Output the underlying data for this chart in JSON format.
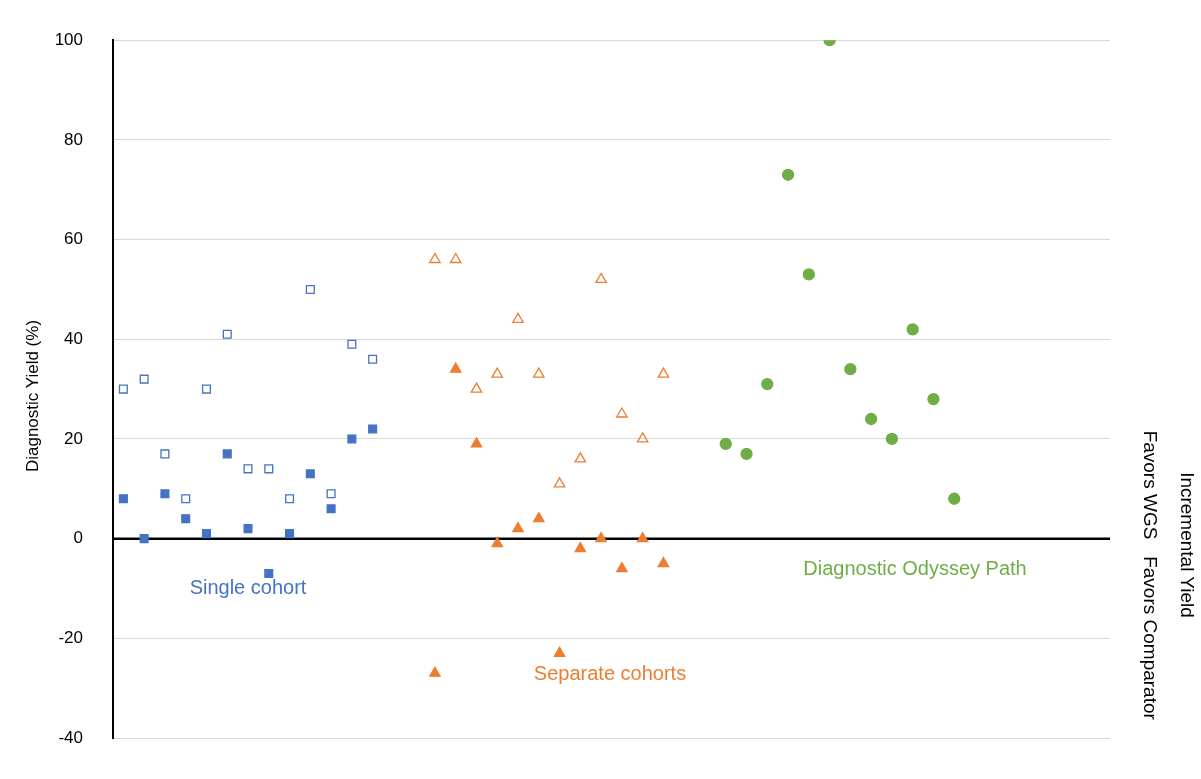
{
  "chart_data": {
    "type": "scatter",
    "ylabel": "Diagnostic Yield (%)",
    "y2label": "Incremental Yield",
    "categories": [
      null,
      null,
      null,
      null,
      null,
      null,
      null,
      null,
      null,
      null,
      null,
      null,
      null,
      null,
      null,
      null,
      null,
      null,
      null,
      null,
      null,
      null,
      null,
      null,
      null,
      null,
      null,
      null,
      null,
      null,
      null,
      null,
      null,
      null,
      null,
      null,
      null,
      null,
      null,
      null,
      null,
      null,
      null,
      null,
      null,
      null,
      null,
      null
    ],
    "series": [
      {
        "color": "#4472c4",
        "marker": "square",
        "values": [
          8,
          0,
          9,
          4,
          1,
          17,
          2,
          -7,
          1,
          13,
          6,
          20,
          22,
          null,
          null,
          null,
          null,
          null,
          null,
          null,
          null,
          null,
          null,
          null,
          null,
          null,
          null,
          null,
          null,
          null,
          null,
          null,
          null,
          null,
          null,
          null,
          null,
          null,
          null,
          null,
          null,
          null,
          null,
          null,
          null,
          null,
          null,
          null
        ]
      },
      {
        "color": "#4472c4",
        "marker": "square",
        "values": [
          30,
          32,
          17,
          8,
          30,
          41,
          14,
          14,
          8,
          50,
          9,
          39,
          36,
          null,
          null,
          null,
          null,
          null,
          null,
          null,
          null,
          null,
          null,
          null,
          null,
          null,
          null,
          null,
          null,
          null,
          null,
          null,
          null,
          null,
          null,
          null,
          null,
          null,
          null,
          null,
          null,
          null,
          null,
          null,
          null,
          null,
          null,
          null
        ]
      },
      {
        "color": "#ed7d31",
        "marker": "triangle",
        "values": [
          null,
          null,
          null,
          null,
          null,
          null,
          null,
          null,
          null,
          null,
          null,
          null,
          null,
          null,
          null,
          -27,
          34,
          19,
          -1,
          2,
          4,
          -23,
          -2,
          0,
          -6,
          0,
          -5,
          null,
          null,
          null,
          null,
          null,
          null,
          null,
          null,
          null,
          null,
          null,
          null,
          null,
          null,
          null,
          null,
          null,
          null,
          null,
          null,
          null
        ]
      },
      {
        "color": "#ed7d31",
        "marker": "triangle",
        "values": [
          null,
          null,
          null,
          null,
          null,
          null,
          null,
          null,
          null,
          null,
          null,
          null,
          null,
          null,
          null,
          56,
          56,
          30,
          33,
          44,
          33,
          11,
          16,
          52,
          25,
          20,
          33,
          null,
          null,
          null,
          null,
          null,
          null,
          null,
          null,
          null,
          null,
          null,
          null,
          null,
          null,
          null,
          null,
          null,
          null,
          null,
          null,
          null
        ]
      },
      {
        "color": "#70ad47",
        "marker": "circle",
        "values": [
          null,
          null,
          null,
          null,
          null,
          null,
          null,
          null,
          null,
          null,
          null,
          null,
          null,
          null,
          null,
          null,
          null,
          null,
          null,
          null,
          null,
          null,
          null,
          null,
          null,
          null,
          null,
          null,
          null,
          19,
          17,
          31,
          73,
          53,
          100,
          34,
          24,
          20,
          42,
          28,
          8,
          null,
          null,
          null,
          null,
          null,
          null,
          null
        ]
      }
    ],
    "annotations": [
      "Single cohort",
      "Separate cohorts",
      "Diagnostic Odyssey Path",
      "Favors WGS",
      "Favors Comparator"
    ],
    "ref_lines": [
      {
        "axis": "y",
        "value": 0,
        "color": "#000000"
      }
    ],
    "ylim": [
      -40,
      100
    ],
    "yticks": [
      -40,
      -20,
      0,
      20,
      40,
      60,
      80,
      100
    ],
    "grid": "y",
    "tick_labels": "y",
    "legend": false
  }
}
